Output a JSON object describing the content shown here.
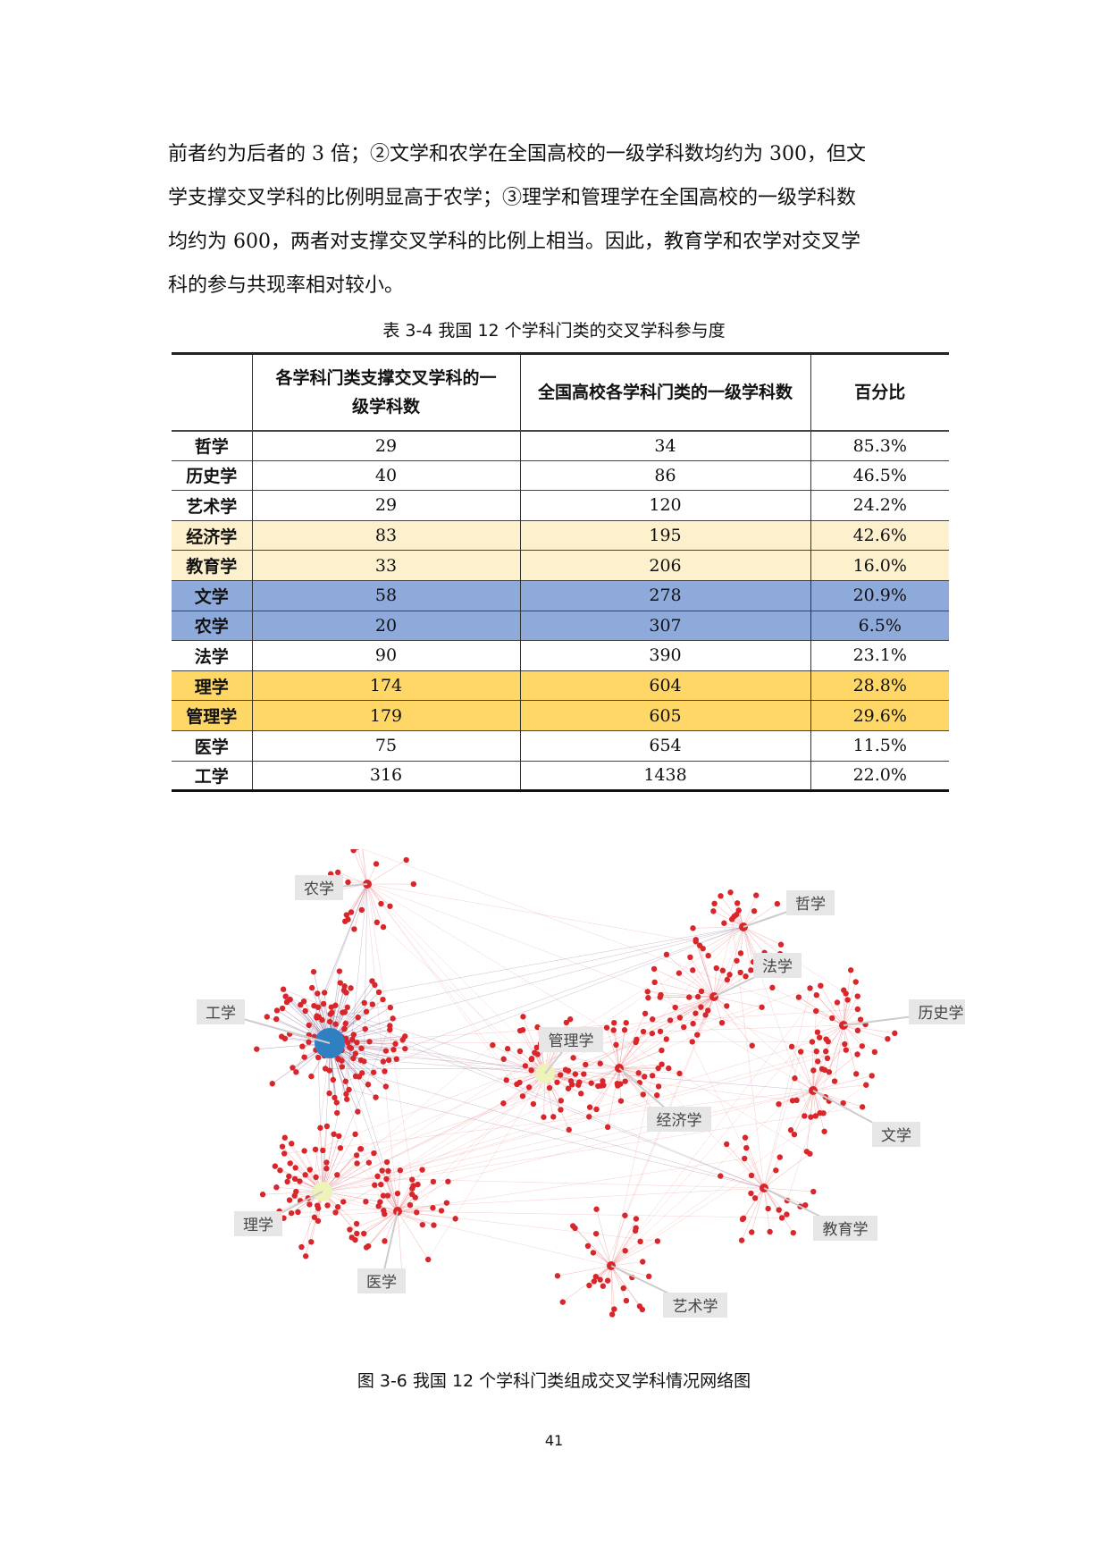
{
  "paragraph": [
    "前者约为后者的 3 倍；②文学和农学在全国高校的一级学科数均约为 300，但文",
    "学支撑交叉学科的比例明显高于农学；③理学和管理学在全国高校的一级学科数",
    "均约为 600，两者对支撑交叉学科的比例上相当。因此，教育学和农学对交叉学",
    "科的参与共现率相对较小。"
  ],
  "table": {
    "caption": "表 3-4  我国 12 个学科门类的交叉学科参与度",
    "headers": [
      "",
      "各学科门类支撑交叉学科的一级学科数",
      "全国高校各学科门类的一级学科数",
      "百分比"
    ],
    "rows": [
      {
        "name": "哲学",
        "a": "29",
        "b": "34",
        "pct": "85.3%",
        "hl": ""
      },
      {
        "name": "历史学",
        "a": "40",
        "b": "86",
        "pct": "46.5%",
        "hl": ""
      },
      {
        "name": "艺术学",
        "a": "29",
        "b": "120",
        "pct": "24.2%",
        "hl": ""
      },
      {
        "name": "经济学",
        "a": "83",
        "b": "195",
        "pct": "42.6%",
        "hl": "cream"
      },
      {
        "name": "教育学",
        "a": "33",
        "b": "206",
        "pct": "16.0%",
        "hl": "cream"
      },
      {
        "name": "文学",
        "a": "58",
        "b": "278",
        "pct": "20.9%",
        "hl": "blue"
      },
      {
        "name": "农学",
        "a": "20",
        "b": "307",
        "pct": "6.5%",
        "hl": "blue"
      },
      {
        "name": "法学",
        "a": "90",
        "b": "390",
        "pct": "23.1%",
        "hl": ""
      },
      {
        "name": "理学",
        "a": "174",
        "b": "604",
        "pct": "28.8%",
        "hl": "gold"
      },
      {
        "name": "管理学",
        "a": "179",
        "b": "605",
        "pct": "29.6%",
        "hl": "gold"
      },
      {
        "name": "医学",
        "a": "75",
        "b": "654",
        "pct": "11.5%",
        "hl": ""
      },
      {
        "name": "工学",
        "a": "316",
        "b": "1438",
        "pct": "22.0%",
        "hl": ""
      }
    ]
  },
  "figure": {
    "caption": "图 3-6  我国 12 个学科门类组成交叉学科情况网络图",
    "labels": [
      "农学",
      "工学",
      "理学",
      "医学",
      "管理学",
      "经济学",
      "法学",
      "哲学",
      "历史学",
      "文学",
      "教育学",
      "艺术学"
    ],
    "colors": {
      "node": "#d9262b",
      "edge": "#e8878a",
      "hub_engineering": "#2f7fc1",
      "hub_pale": "#eef3b8",
      "edge_purple": "#7d5a8c"
    }
  },
  "page_number": "41"
}
